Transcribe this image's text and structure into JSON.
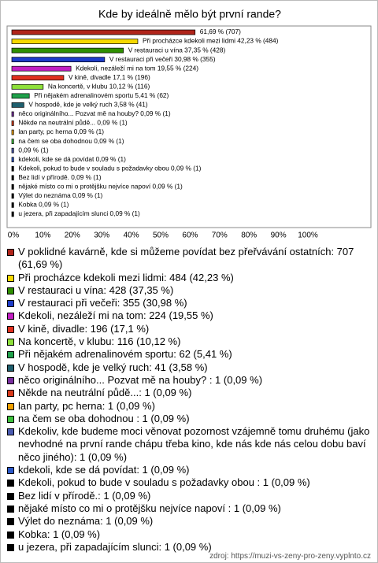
{
  "chart_data": {
    "type": "bar",
    "orientation": "horizontal",
    "title": "Kde by ideálně mělo být první rande?",
    "values": [
      61.69,
      42.23,
      37.35,
      30.98,
      19.55,
      17.1,
      10.12,
      5.41,
      3.58,
      0.09,
      0.09,
      0.09,
      0.09,
      0.09,
      0.09,
      0.09,
      0.09,
      0.09,
      0.09,
      0.09,
      0.09
    ],
    "value_labels": [
      "61,69 % (707)",
      "Při procházce kdekoli mezi lidmi 42,23 % (484)",
      "V restauraci u vína 37,35 % (428)",
      "V restauraci při večeři 30,98 % (355)",
      "Kdekoli, nezáleží mi na tom 19,55 % (224)",
      "V kině, divadle 17,1 % (196)",
      "Na koncertě, v klubu 10,12 % (116)",
      "Při nějakém adrenalinovém sportu 5,41 % (62)",
      "V hospodě, kde je velký ruch 3,58 % (41)",
      "něco originálního... Pozvat mě na houby?  0,09 % (1)",
      "Někde na neutrální půdě...  0,09 % (1)",
      "lan party, pc herna 0,09 % (1)",
      "na čem se oba dohodnou  0,09 % (1)",
      "0,09 % (1)",
      "kdekoli, kde se dá povídat 0,09 % (1)",
      "Kdekoli, pokud to bude v souladu s požadavky obou  0,09 % (1)",
      "Bez lidí v přírodě. 0,09 % (1)",
      "nějaké místo co mi o protějšku nejvíce napoví  0,09 % (1)",
      "Výlet do neznáma 0,09 % (1)",
      "Kobka 0,09 % (1)",
      "u jezera, při zapadajícím slunci 0,09 % (1)"
    ],
    "colors": [
      "#b0241a",
      "#f5d800",
      "#2f8f00",
      "#1e3cc8",
      "#c21fc2",
      "#e0301e",
      "#8ee03a",
      "#1fa04a",
      "#1f5f6e",
      "#7a2fa0",
      "#d83a1a",
      "#f0a000",
      "#3cc03c",
      "#4a5ab0",
      "#2a58c8",
      "#000000",
      "#000000",
      "#000000",
      "#000000",
      "#000000",
      "#000000"
    ],
    "legend": [
      "V poklidné kavárně, kde si můžeme povídat bez přeřvávání ostatních: 707 (61,69 %)",
      "Při procházce kdekoli mezi lidmi: 484 (42,23 %)",
      "V restauraci u vína: 428 (37,35 %)",
      "V restauraci při večeři: 355 (30,98 %)",
      "Kdekoli, nezáleží mi na tom: 224 (19,55 %)",
      "V kině, divadle: 196 (17,1 %)",
      "Na koncertě, v klubu: 116 (10,12 %)",
      "Při nějakém adrenalinovém sportu: 62 (5,41 %)",
      "V hospodě, kde je velký ruch: 41 (3,58 %)",
      "něco originálního... Pozvat mě na houby? : 1 (0,09 %)",
      "Někde na neutrální půdě...: 1 (0,09 %)",
      "lan party, pc herna: 1 (0,09 %)",
      "na čem se oba dohodnou : 1 (0,09 %)",
      "Kdekoliv, kde budeme moci věnovat pozornost vzájemně tomu druhému (jako nevhodné na první rande chápu třeba kino, kde nás kde nás celou dobu baví něco jiného): 1 (0,09 %)",
      "kdekoli, kde se dá povídat: 1 (0,09 %)",
      "Kdekoli, pokud to bude v souladu s požadavky obou : 1 (0,09 %)",
      "Bez lidí v přírodě.: 1 (0,09 %)",
      "nějaké místo co mi o protějšku nejvíce napoví : 1 (0,09 %)",
      "Výlet do neznáma: 1 (0,09 %)",
      "Kobka: 1 (0,09 %)",
      "u jezera, při zapadajícím slunci: 1 (0,09 %)"
    ],
    "xlim": [
      0,
      100
    ],
    "xticks": [
      {
        "value": 0,
        "label": "0%"
      },
      {
        "value": 10,
        "label": "10%"
      },
      {
        "value": 20,
        "label": "20%"
      },
      {
        "value": 30,
        "label": "30%"
      },
      {
        "value": 40,
        "label": "40%"
      },
      {
        "value": 50,
        "label": "50%"
      },
      {
        "value": 60,
        "label": "60%"
      },
      {
        "value": 70,
        "label": "70%"
      },
      {
        "value": 80,
        "label": "80%"
      },
      {
        "value": 90,
        "label": "90%"
      },
      {
        "value": 100,
        "label": "100%"
      }
    ],
    "source": "zdroj: https://muzi-vs-zeny-pro-zeny.vyplnto.cz"
  }
}
